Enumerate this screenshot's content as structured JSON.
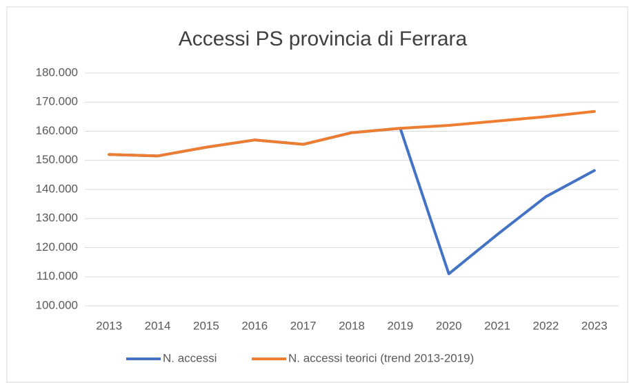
{
  "chart_data": {
    "type": "line",
    "title": "Accessi PS provincia di Ferrara",
    "categories": [
      "2013",
      "2014",
      "2015",
      "2016",
      "2017",
      "2018",
      "2019",
      "2020",
      "2021",
      "2022",
      "2023"
    ],
    "series": [
      {
        "name": "N. accessi",
        "color": "#4472c4",
        "values": [
          152000,
          151500,
          154500,
          157000,
          155500,
          159500,
          161000,
          111000,
          124500,
          137500,
          146500
        ]
      },
      {
        "name": "N. accessi teorici (trend 2013-2019)",
        "color": "#ed7d31",
        "values": [
          152000,
          151500,
          154500,
          157000,
          155500,
          159500,
          161000,
          162000,
          163500,
          165000,
          166800
        ]
      }
    ],
    "ylim": [
      100000,
      180000
    ],
    "yticks": [
      {
        "value": 100000,
        "label": "100.000"
      },
      {
        "value": 110000,
        "label": "110.000"
      },
      {
        "value": 120000,
        "label": "120.000"
      },
      {
        "value": 130000,
        "label": "130.000"
      },
      {
        "value": 140000,
        "label": "140.000"
      },
      {
        "value": 150000,
        "label": "150.000"
      },
      {
        "value": 160000,
        "label": "160.000"
      },
      {
        "value": 170000,
        "label": "170.000"
      },
      {
        "value": 180000,
        "label": "180.000"
      }
    ],
    "grid": true,
    "legend": "bottom"
  }
}
